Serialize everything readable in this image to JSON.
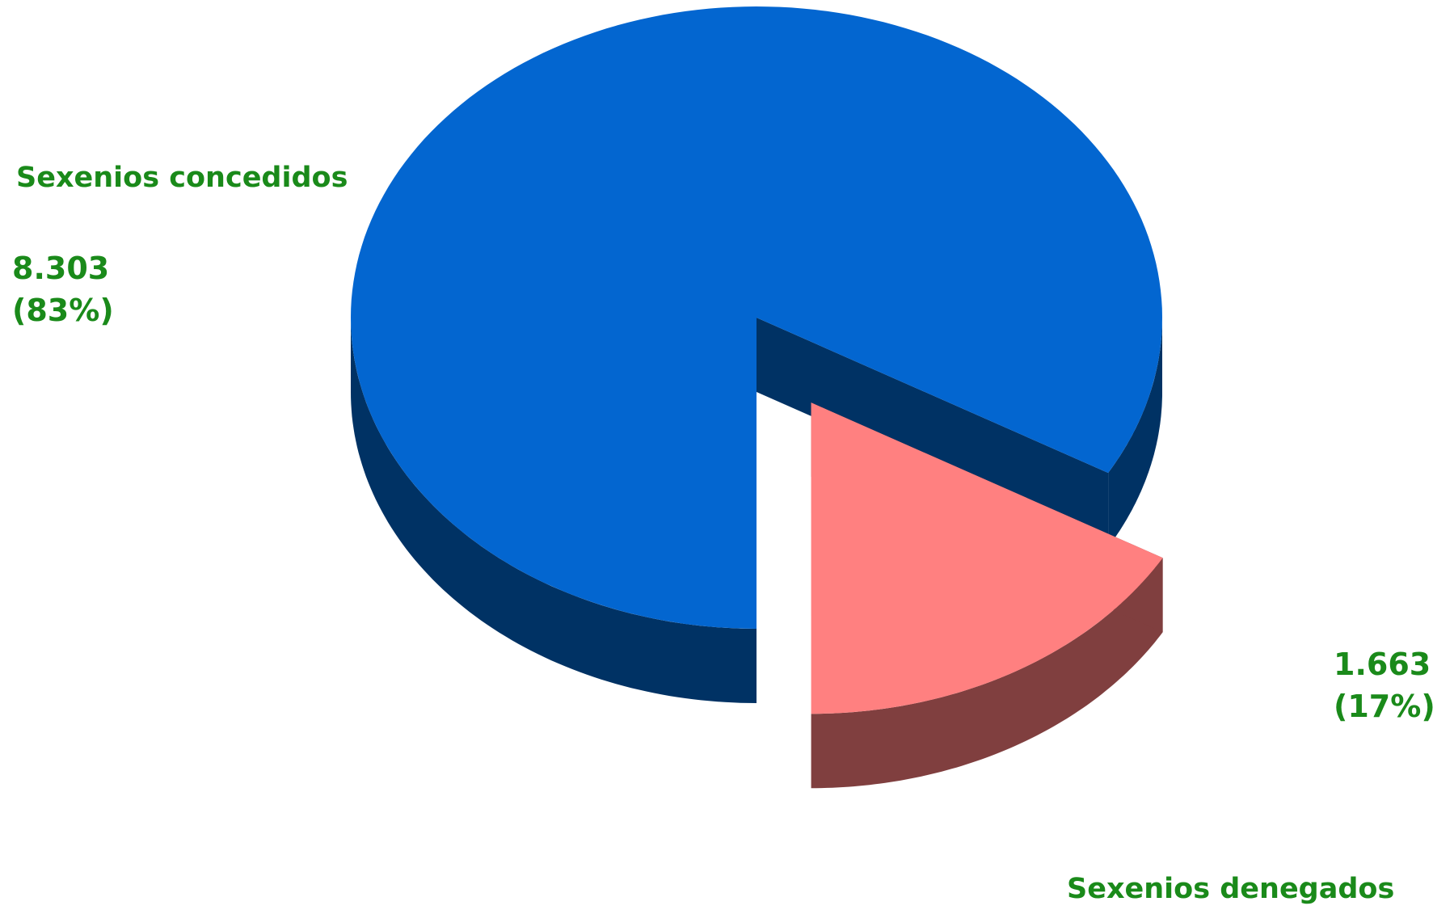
{
  "chart_data": {
    "type": "pie",
    "variant": "3d-exploded",
    "slices": [
      {
        "label": "Sexenios concedidos",
        "value": 8303,
        "value_text": "8.303",
        "percent_text": "(83%)",
        "top_color": "#0366d0",
        "side_color": "#003264"
      },
      {
        "label": "Sexenios denegados",
        "value": 1663,
        "value_text": "1.663",
        "percent_text": "(17%)",
        "top_color": "#ff8080",
        "side_color": "#803f3f"
      }
    ]
  },
  "colors": {
    "label_text": "#1a8a1a",
    "background": "#ffffff"
  }
}
